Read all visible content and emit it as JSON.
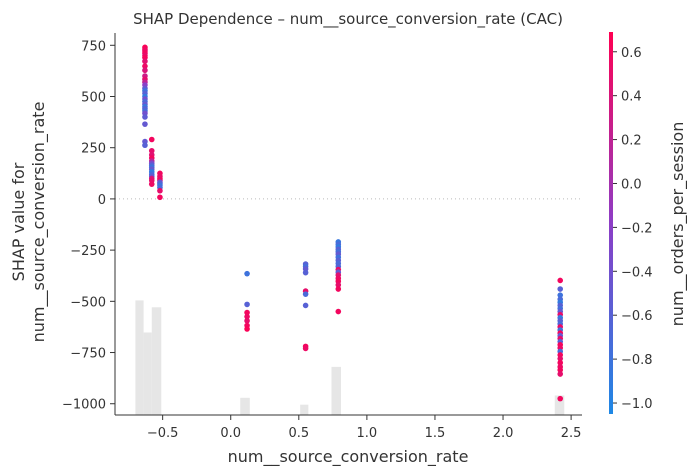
{
  "chart_data": {
    "type": "scatter",
    "title": "SHAP Dependence – num__source_conversion_rate (CAC)",
    "xlabel": "num__source_conversion_rate",
    "ylabel_line1": "SHAP value for",
    "ylabel_line2": "num__source_conversion_rate",
    "xlim": [
      -0.85,
      2.58
    ],
    "ylim": [
      -1055,
      810
    ],
    "xticks": [
      -0.5,
      0.0,
      0.5,
      1.0,
      1.5,
      2.0,
      2.5
    ],
    "xtick_labels": [
      "−0.5",
      "0.0",
      "0.5",
      "1.0",
      "1.5",
      "2.0",
      "2.5"
    ],
    "yticks": [
      750,
      500,
      250,
      0,
      -250,
      -500,
      -750,
      -1000
    ],
    "ytick_labels": [
      "750",
      "500",
      "250",
      "0",
      "−250",
      "−500",
      "−750",
      "−1000"
    ],
    "zero_line": true,
    "colorbar": {
      "label": "num__orders_per_session",
      "min": -1.05,
      "max": 0.69,
      "ticks": [
        0.6,
        0.4,
        0.2,
        0.0,
        -0.2,
        -0.4,
        -0.6,
        -0.8,
        -1.0
      ],
      "tick_labels": [
        "0.6",
        "0.4",
        "0.2",
        "0.0",
        "−0.2",
        "−0.4",
        "−0.6",
        "−0.8",
        "−1.0"
      ],
      "color_low": "#1e88e5",
      "color_mid": "#8d3dc6",
      "color_high": "#ff0052"
    },
    "histogram": {
      "color": "#e6e6e6",
      "bars": [
        {
          "x0": -0.7,
          "x1": -0.64,
          "count": 1.0
        },
        {
          "x0": -0.64,
          "x1": -0.58,
          "count": 0.72
        },
        {
          "x0": -0.58,
          "x1": -0.51,
          "count": 0.94
        },
        {
          "x0": 0.07,
          "x1": 0.14,
          "count": 0.15
        },
        {
          "x0": 0.51,
          "x1": 0.57,
          "count": 0.09
        },
        {
          "x0": 0.74,
          "x1": 0.81,
          "count": 0.42
        },
        {
          "x0": 2.38,
          "x1": 2.45,
          "count": 0.17
        }
      ]
    },
    "points": [
      {
        "x": -0.63,
        "y": 740,
        "c": 0.65
      },
      {
        "x": -0.63,
        "y": 730,
        "c": 0.6
      },
      {
        "x": -0.63,
        "y": 722,
        "c": 0.55
      },
      {
        "x": -0.63,
        "y": 712,
        "c": 0.6
      },
      {
        "x": -0.63,
        "y": 700,
        "c": 0.5
      },
      {
        "x": -0.63,
        "y": 690,
        "c": 0.62
      },
      {
        "x": -0.63,
        "y": 672,
        "c": 0.45
      },
      {
        "x": -0.63,
        "y": 648,
        "c": 0.55
      },
      {
        "x": -0.63,
        "y": 628,
        "c": 0.4
      },
      {
        "x": -0.63,
        "y": 600,
        "c": 0.3
      },
      {
        "x": -0.63,
        "y": 584,
        "c": 0.5
      },
      {
        "x": -0.63,
        "y": 570,
        "c": 0.2
      },
      {
        "x": -0.63,
        "y": 556,
        "c": -0.2
      },
      {
        "x": -0.63,
        "y": 540,
        "c": -0.5
      },
      {
        "x": -0.63,
        "y": 528,
        "c": -0.8
      },
      {
        "x": -0.63,
        "y": 515,
        "c": -0.6
      },
      {
        "x": -0.63,
        "y": 500,
        "c": -0.9
      },
      {
        "x": -0.63,
        "y": 488,
        "c": -0.4
      },
      {
        "x": -0.63,
        "y": 475,
        "c": -0.7
      },
      {
        "x": -0.63,
        "y": 462,
        "c": -0.5
      },
      {
        "x": -0.63,
        "y": 450,
        "c": -0.85
      },
      {
        "x": -0.63,
        "y": 440,
        "c": -0.6
      },
      {
        "x": -0.63,
        "y": 430,
        "c": -0.75
      },
      {
        "x": -0.63,
        "y": 418,
        "c": -0.4
      },
      {
        "x": -0.63,
        "y": 400,
        "c": -0.55
      },
      {
        "x": -0.63,
        "y": 365,
        "c": -0.5
      },
      {
        "x": -0.63,
        "y": 280,
        "c": -0.5
      },
      {
        "x": -0.63,
        "y": 262,
        "c": -0.6
      },
      {
        "x": -0.58,
        "y": 290,
        "c": 0.6
      },
      {
        "x": -0.58,
        "y": 235,
        "c": 0.5
      },
      {
        "x": -0.58,
        "y": 215,
        "c": 0.45
      },
      {
        "x": -0.58,
        "y": 200,
        "c": 0.6
      },
      {
        "x": -0.58,
        "y": 185,
        "c": 0.2
      },
      {
        "x": -0.58,
        "y": 175,
        "c": -0.3
      },
      {
        "x": -0.58,
        "y": 165,
        "c": -0.6
      },
      {
        "x": -0.58,
        "y": 155,
        "c": -0.8
      },
      {
        "x": -0.58,
        "y": 145,
        "c": -0.5
      },
      {
        "x": -0.58,
        "y": 132,
        "c": -0.9
      },
      {
        "x": -0.58,
        "y": 120,
        "c": -0.7
      },
      {
        "x": -0.58,
        "y": 110,
        "c": -0.55
      },
      {
        "x": -0.58,
        "y": 100,
        "c": 0.4
      },
      {
        "x": -0.58,
        "y": 90,
        "c": 0.5
      },
      {
        "x": -0.58,
        "y": 72,
        "c": 0.55
      },
      {
        "x": -0.52,
        "y": 125,
        "c": 0.6
      },
      {
        "x": -0.52,
        "y": 110,
        "c": 0.55
      },
      {
        "x": -0.52,
        "y": 100,
        "c": 0.5
      },
      {
        "x": -0.52,
        "y": 92,
        "c": 0.6
      },
      {
        "x": -0.52,
        "y": 82,
        "c": -0.4
      },
      {
        "x": -0.52,
        "y": 74,
        "c": -0.6
      },
      {
        "x": -0.52,
        "y": 66,
        "c": -0.8
      },
      {
        "x": -0.52,
        "y": 55,
        "c": -0.7
      },
      {
        "x": -0.52,
        "y": 40,
        "c": 0.5
      },
      {
        "x": -0.52,
        "y": 8,
        "c": 0.6
      },
      {
        "x": 0.12,
        "y": -365,
        "c": -0.8
      },
      {
        "x": 0.12,
        "y": -515,
        "c": -0.6
      },
      {
        "x": 0.12,
        "y": -555,
        "c": 0.6
      },
      {
        "x": 0.12,
        "y": -575,
        "c": 0.55
      },
      {
        "x": 0.12,
        "y": -595,
        "c": 0.5
      },
      {
        "x": 0.12,
        "y": -618,
        "c": 0.6
      },
      {
        "x": 0.12,
        "y": -635,
        "c": 0.65
      },
      {
        "x": 0.55,
        "y": -318,
        "c": -0.6
      },
      {
        "x": 0.55,
        "y": -330,
        "c": -0.75
      },
      {
        "x": 0.55,
        "y": -342,
        "c": -0.5
      },
      {
        "x": 0.55,
        "y": -360,
        "c": -0.6
      },
      {
        "x": 0.55,
        "y": -450,
        "c": 0.5
      },
      {
        "x": 0.55,
        "y": -465,
        "c": -0.7
      },
      {
        "x": 0.55,
        "y": -520,
        "c": -0.6
      },
      {
        "x": 0.55,
        "y": -720,
        "c": 0.6
      },
      {
        "x": 0.55,
        "y": -730,
        "c": 0.55
      },
      {
        "x": 0.79,
        "y": -210,
        "c": -0.85
      },
      {
        "x": 0.79,
        "y": -222,
        "c": -0.7
      },
      {
        "x": 0.79,
        "y": -234,
        "c": -0.9
      },
      {
        "x": 0.79,
        "y": -246,
        "c": -0.6
      },
      {
        "x": 0.79,
        "y": -258,
        "c": -0.75
      },
      {
        "x": 0.79,
        "y": -270,
        "c": -0.5
      },
      {
        "x": 0.79,
        "y": -285,
        "c": -0.8
      },
      {
        "x": 0.79,
        "y": -300,
        "c": -0.6
      },
      {
        "x": 0.79,
        "y": -315,
        "c": -0.7
      },
      {
        "x": 0.79,
        "y": -330,
        "c": -0.65
      },
      {
        "x": 0.79,
        "y": -345,
        "c": 0.5
      },
      {
        "x": 0.79,
        "y": -358,
        "c": -0.5
      },
      {
        "x": 0.79,
        "y": -372,
        "c": 0.45
      },
      {
        "x": 0.79,
        "y": -388,
        "c": 0.55
      },
      {
        "x": 0.79,
        "y": -402,
        "c": 0.6
      },
      {
        "x": 0.79,
        "y": -420,
        "c": 0.5
      },
      {
        "x": 0.79,
        "y": -440,
        "c": 0.6
      },
      {
        "x": 0.79,
        "y": -550,
        "c": 0.6
      },
      {
        "x": 2.42,
        "y": -398,
        "c": 0.6
      },
      {
        "x": 2.42,
        "y": -440,
        "c": -0.6
      },
      {
        "x": 2.42,
        "y": -470,
        "c": -0.8
      },
      {
        "x": 2.42,
        "y": -490,
        "c": -0.7
      },
      {
        "x": 2.42,
        "y": -505,
        "c": -0.9
      },
      {
        "x": 2.42,
        "y": -520,
        "c": -0.6
      },
      {
        "x": 2.42,
        "y": -535,
        "c": -0.75
      },
      {
        "x": 2.42,
        "y": -550,
        "c": -0.5
      },
      {
        "x": 2.42,
        "y": -565,
        "c": 0.5
      },
      {
        "x": 2.42,
        "y": -580,
        "c": -0.85
      },
      {
        "x": 2.42,
        "y": -595,
        "c": -0.6
      },
      {
        "x": 2.42,
        "y": -610,
        "c": -0.7
      },
      {
        "x": 2.42,
        "y": -625,
        "c": 0.55
      },
      {
        "x": 2.42,
        "y": -640,
        "c": -0.8
      },
      {
        "x": 2.42,
        "y": -655,
        "c": 0.6
      },
      {
        "x": 2.42,
        "y": -668,
        "c": -0.5
      },
      {
        "x": 2.42,
        "y": -682,
        "c": 0.5
      },
      {
        "x": 2.42,
        "y": -697,
        "c": -0.6
      },
      {
        "x": 2.42,
        "y": -712,
        "c": 0.6
      },
      {
        "x": 2.42,
        "y": -728,
        "c": 0.55
      },
      {
        "x": 2.42,
        "y": -745,
        "c": -0.7
      },
      {
        "x": 2.42,
        "y": -762,
        "c": 0.6
      },
      {
        "x": 2.42,
        "y": -780,
        "c": 0.5
      },
      {
        "x": 2.42,
        "y": -800,
        "c": 0.6
      },
      {
        "x": 2.42,
        "y": -820,
        "c": 0.55
      },
      {
        "x": 2.42,
        "y": -835,
        "c": 0.6
      },
      {
        "x": 2.42,
        "y": -855,
        "c": 0.5
      },
      {
        "x": 2.42,
        "y": -975,
        "c": 0.6
      }
    ]
  }
}
